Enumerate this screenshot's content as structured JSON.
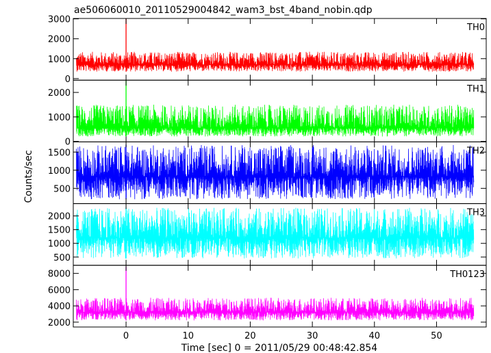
{
  "chart_data": {
    "type": "line",
    "title": "ae506060010_20110529004842_wam3_bst_4band_nobin.qdp",
    "xlabel": "Time [sec] 0 = 2011/05/29 00:48:42.854",
    "ylabel": "Counts/sec",
    "xlim": [
      -8.5,
      58
    ],
    "xticks": [
      0,
      10,
      20,
      30,
      40,
      50
    ],
    "x_range": [
      -8,
      56
    ],
    "burst_time": 0,
    "grid": false,
    "panels": [
      {
        "name": "TH0",
        "color": "#ff0000",
        "ylim": [
          -80,
          3020
        ],
        "yticks": [
          0,
          1000,
          2000,
          3000
        ],
        "baseline": 700,
        "noise_low": 350,
        "noise_high": 1350,
        "peak": 3020
      },
      {
        "name": "TH1",
        "color": "#00ff00",
        "ylim": [
          -20,
          2500
        ],
        "yticks": [
          0,
          1000,
          2000
        ],
        "baseline": 550,
        "noise_low": 200,
        "noise_high": 1500,
        "peak": 2500
      },
      {
        "name": "TH2",
        "color": "#0000ff",
        "ylim": [
          80,
          1780
        ],
        "yticks": [
          500,
          1000,
          1500
        ],
        "baseline": 820,
        "noise_low": 200,
        "noise_high": 1700,
        "peak": 1700
      },
      {
        "name": "TH3",
        "color": "#00ffff",
        "ylim": [
          200,
          2450
        ],
        "yticks": [
          500,
          1000,
          1500,
          2000
        ],
        "baseline": 1200,
        "noise_low": 450,
        "noise_high": 2300,
        "peak": 2300
      },
      {
        "name": "TH0123",
        "color": "#ff00ff",
        "ylim": [
          1400,
          9000
        ],
        "yticks": [
          2000,
          4000,
          6000,
          8000
        ],
        "baseline": 3200,
        "noise_low": 2200,
        "noise_high": 5000,
        "peak": 8800
      }
    ]
  }
}
